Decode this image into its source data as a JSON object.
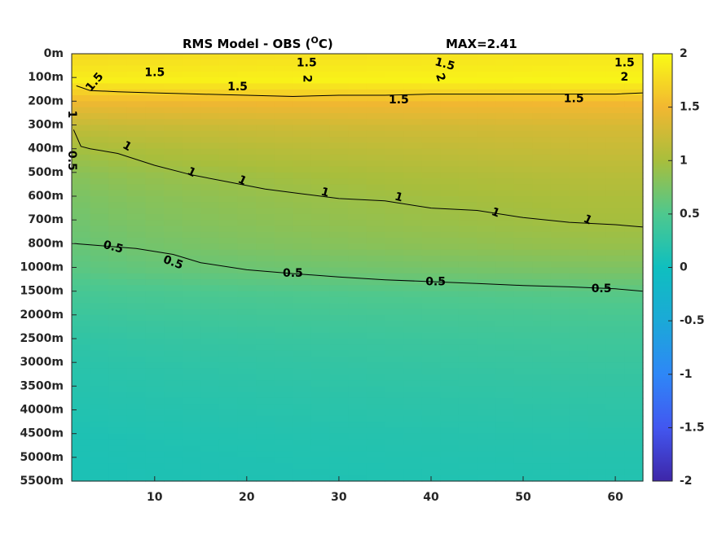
{
  "chart_data": {
    "type": "heatmap",
    "title": "RMS Model - OBS (",
    "title_sup": "O",
    "title_end": "C)",
    "max_label": "MAX=2.41",
    "colormap": "parula",
    "clim": [
      -2,
      2
    ],
    "xlim": [
      1,
      63
    ],
    "x_ticks": [
      10,
      20,
      30,
      40,
      50,
      60
    ],
    "y_tick_labels": [
      "0m",
      "100m",
      "200m",
      "300m",
      "400m",
      "500m",
      "600m",
      "700m",
      "800m",
      "1000m",
      "1500m",
      "2000m",
      "2500m",
      "3000m",
      "3500m",
      "4000m",
      "4500m",
      "5000m",
      "5500m"
    ],
    "colorbar_ticks": [
      "2",
      "1.5",
      "1",
      "0.5",
      "0",
      "-0.5",
      "-1",
      "-1.5",
      "-2"
    ],
    "profile_levels": [
      "0m",
      "100m",
      "200m",
      "300m",
      "400m",
      "500m",
      "600m",
      "700m",
      "800m",
      "1000m",
      "1500m",
      "2000m",
      "2500m",
      "3000m",
      "3500m",
      "4000m",
      "4500m",
      "5000m",
      "5500m"
    ],
    "profile_left": [
      1.75,
      1.9,
      1.45,
      1.15,
      0.95,
      0.8,
      0.72,
      0.67,
      0.62,
      0.55,
      0.42,
      0.33,
      0.25,
      0.2,
      0.17,
      0.14,
      0.11,
      0.1,
      0.1
    ],
    "profile_right": [
      1.85,
      1.95,
      1.5,
      1.3,
      1.2,
      1.1,
      1.03,
      0.98,
      0.9,
      0.75,
      0.55,
      0.45,
      0.38,
      0.33,
      0.28,
      0.24,
      0.2,
      0.17,
      0.15
    ],
    "contours": [
      {
        "level": "0.5",
        "x": [
          1.3,
          3,
          8,
          12,
          15,
          20,
          25,
          30,
          35,
          40,
          45,
          50,
          55,
          60,
          63
        ],
        "y": [
          "800m",
          "810m",
          "840m",
          "890m",
          "960m",
          "1050m",
          "1130m",
          "1200m",
          "1260m",
          "1300m",
          "1340m",
          "1380m",
          "1410m",
          "1450m",
          "1500m"
        ]
      },
      {
        "level": "1",
        "x": [
          1.2,
          2,
          3,
          6,
          10,
          14,
          18,
          22,
          26,
          30,
          35,
          40,
          45,
          50,
          55,
          60,
          63
        ],
        "y": [
          "320m",
          "390m",
          "400m",
          "420m",
          "470m",
          "510m",
          "540m",
          "570m",
          "590m",
          "610m",
          "620m",
          "650m",
          "660m",
          "690m",
          "710m",
          "720m",
          "730m"
        ]
      },
      {
        "level": "1.5",
        "x": [
          1.5,
          3,
          6,
          10,
          15,
          20,
          25,
          30,
          35,
          40,
          45,
          50,
          55,
          60,
          63
        ],
        "y": [
          "135m",
          "155m",
          "160m",
          "165m",
          "170m",
          "175m",
          "180m",
          "175m",
          "175m",
          "170m",
          "170m",
          "170m",
          "170m",
          "170m",
          "165m"
        ]
      }
    ],
    "contour_labels": [
      {
        "text": "1.5",
        "x": 3.5,
        "y": "120m",
        "rot": -50
      },
      {
        "text": "1.5",
        "x": 10,
        "y": "80m",
        "rot": 0
      },
      {
        "text": "1.5",
        "x": 26.5,
        "y": "40m",
        "rot": 0
      },
      {
        "text": "2",
        "x": 26.5,
        "y": "105m",
        "rot": 90
      },
      {
        "text": "1.5",
        "x": 41.5,
        "y": "45m",
        "rot": 15
      },
      {
        "text": "2",
        "x": 41,
        "y": "100m",
        "rot": 70
      },
      {
        "text": "1.5",
        "x": 61,
        "y": "40m",
        "rot": 0
      },
      {
        "text": "2",
        "x": 61,
        "y": "100m",
        "rot": 0
      },
      {
        "text": "1.5",
        "x": 19,
        "y": "140m",
        "rot": 0
      },
      {
        "text": "1.5",
        "x": 36.5,
        "y": "195m",
        "rot": 0
      },
      {
        "text": "1.5",
        "x": 55.5,
        "y": "190m",
        "rot": 0
      },
      {
        "text": "1",
        "x": 1,
        "y": "255m",
        "rot": 90
      },
      {
        "text": "0.5",
        "x": 1,
        "y": "450m",
        "rot": 90
      },
      {
        "text": "1",
        "x": 7,
        "y": "390m",
        "rot": 30
      },
      {
        "text": "1",
        "x": 14,
        "y": "500m",
        "rot": 25
      },
      {
        "text": "1",
        "x": 19.5,
        "y": "535m",
        "rot": 25
      },
      {
        "text": "1",
        "x": 28.5,
        "y": "585m",
        "rot": 15
      },
      {
        "text": "1",
        "x": 36.5,
        "y": "605m",
        "rot": 15
      },
      {
        "text": "1",
        "x": 47,
        "y": "670m",
        "rot": 20
      },
      {
        "text": "1",
        "x": 57,
        "y": "700m",
        "rot": 25
      },
      {
        "text": "0.5",
        "x": 5.5,
        "y": "830m",
        "rot": 15
      },
      {
        "text": "0.5",
        "x": 12,
        "y": "960m",
        "rot": 20
      },
      {
        "text": "0.5",
        "x": 25,
        "y": "1130m",
        "rot": 0
      },
      {
        "text": "0.5",
        "x": 40.5,
        "y": "1310m",
        "rot": 0
      },
      {
        "text": "0.5",
        "x": 58.5,
        "y": "1450m",
        "rot": 0
      }
    ]
  }
}
